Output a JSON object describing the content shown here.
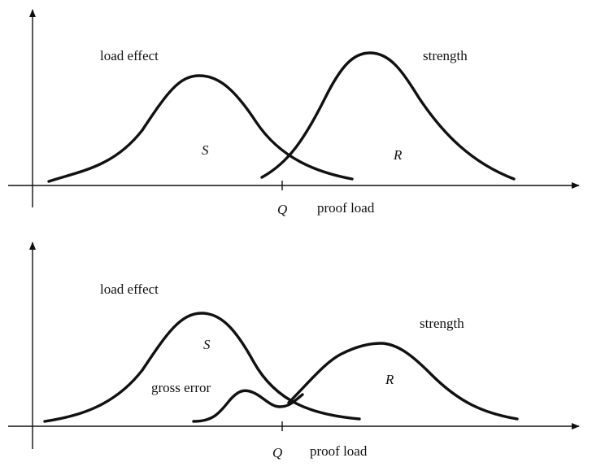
{
  "panels": [
    {
      "load_label": "load effect",
      "strength_label": "strength",
      "s_symbol": "S",
      "r_symbol": "R",
      "q_symbol": "Q",
      "proof_label": "proof load"
    },
    {
      "load_label": "load effect",
      "strength_label": "strength",
      "s_symbol": "S",
      "r_symbol": "R",
      "gross_label": "gross error",
      "q_symbol": "Q",
      "proof_label": "proof load"
    }
  ]
}
